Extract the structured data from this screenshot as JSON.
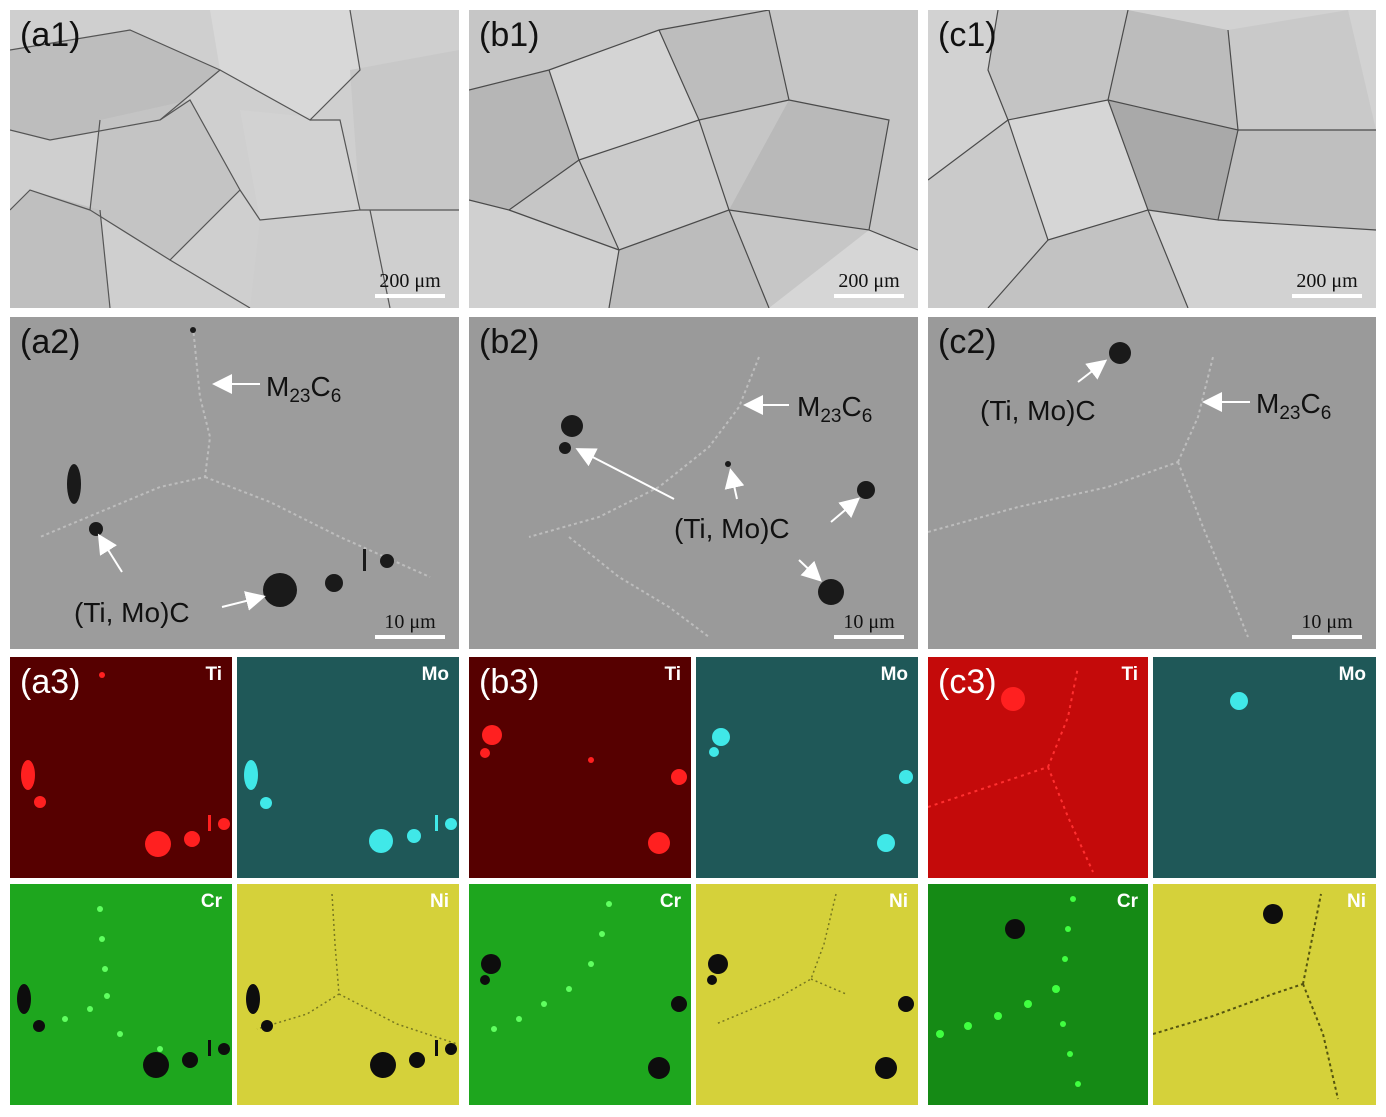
{
  "panels": {
    "a1": {
      "label": "(a1)",
      "scale": "200 μm"
    },
    "b1": {
      "label": "(b1)",
      "scale": "200 μm"
    },
    "c1": {
      "label": "(c1)",
      "scale": "200 μm"
    },
    "a2": {
      "label": "(a2)",
      "scale": "10 μm",
      "m23": "M",
      "m23_sub1": "23",
      "m23_c": "C",
      "m23_sub2": "6",
      "carbide": "(Ti, Mo)C"
    },
    "b2": {
      "label": "(b2)",
      "scale": "10 μm",
      "m23": "M",
      "m23_sub1": "23",
      "m23_c": "C",
      "m23_sub2": "6",
      "carbide": "(Ti, Mo)C"
    },
    "c2": {
      "label": "(c2)",
      "scale": "10 μm",
      "m23": "M",
      "m23_sub1": "23",
      "m23_c": "C",
      "m23_sub2": "6",
      "carbide": "(Ti, Mo)C"
    },
    "a3": {
      "label": "(a3)"
    },
    "b3": {
      "label": "(b3)"
    },
    "c3": {
      "label": "(c3)"
    }
  },
  "eds": {
    "ti": "Ti",
    "mo": "Mo",
    "cr": "Cr",
    "ni": "Ni"
  },
  "colors": {
    "ti_bg": "#5a0000",
    "ti_spot": "#ff2020",
    "mo_bg": "#1d5a5a",
    "mo_spot": "#40e8e8",
    "cr_bg": "#1fa51f",
    "cr_spot": "#55ff55",
    "ni_bg": "#d6d23a",
    "sem_bg": "#9a9a9a",
    "grain_bg": "#c9c9c9"
  }
}
